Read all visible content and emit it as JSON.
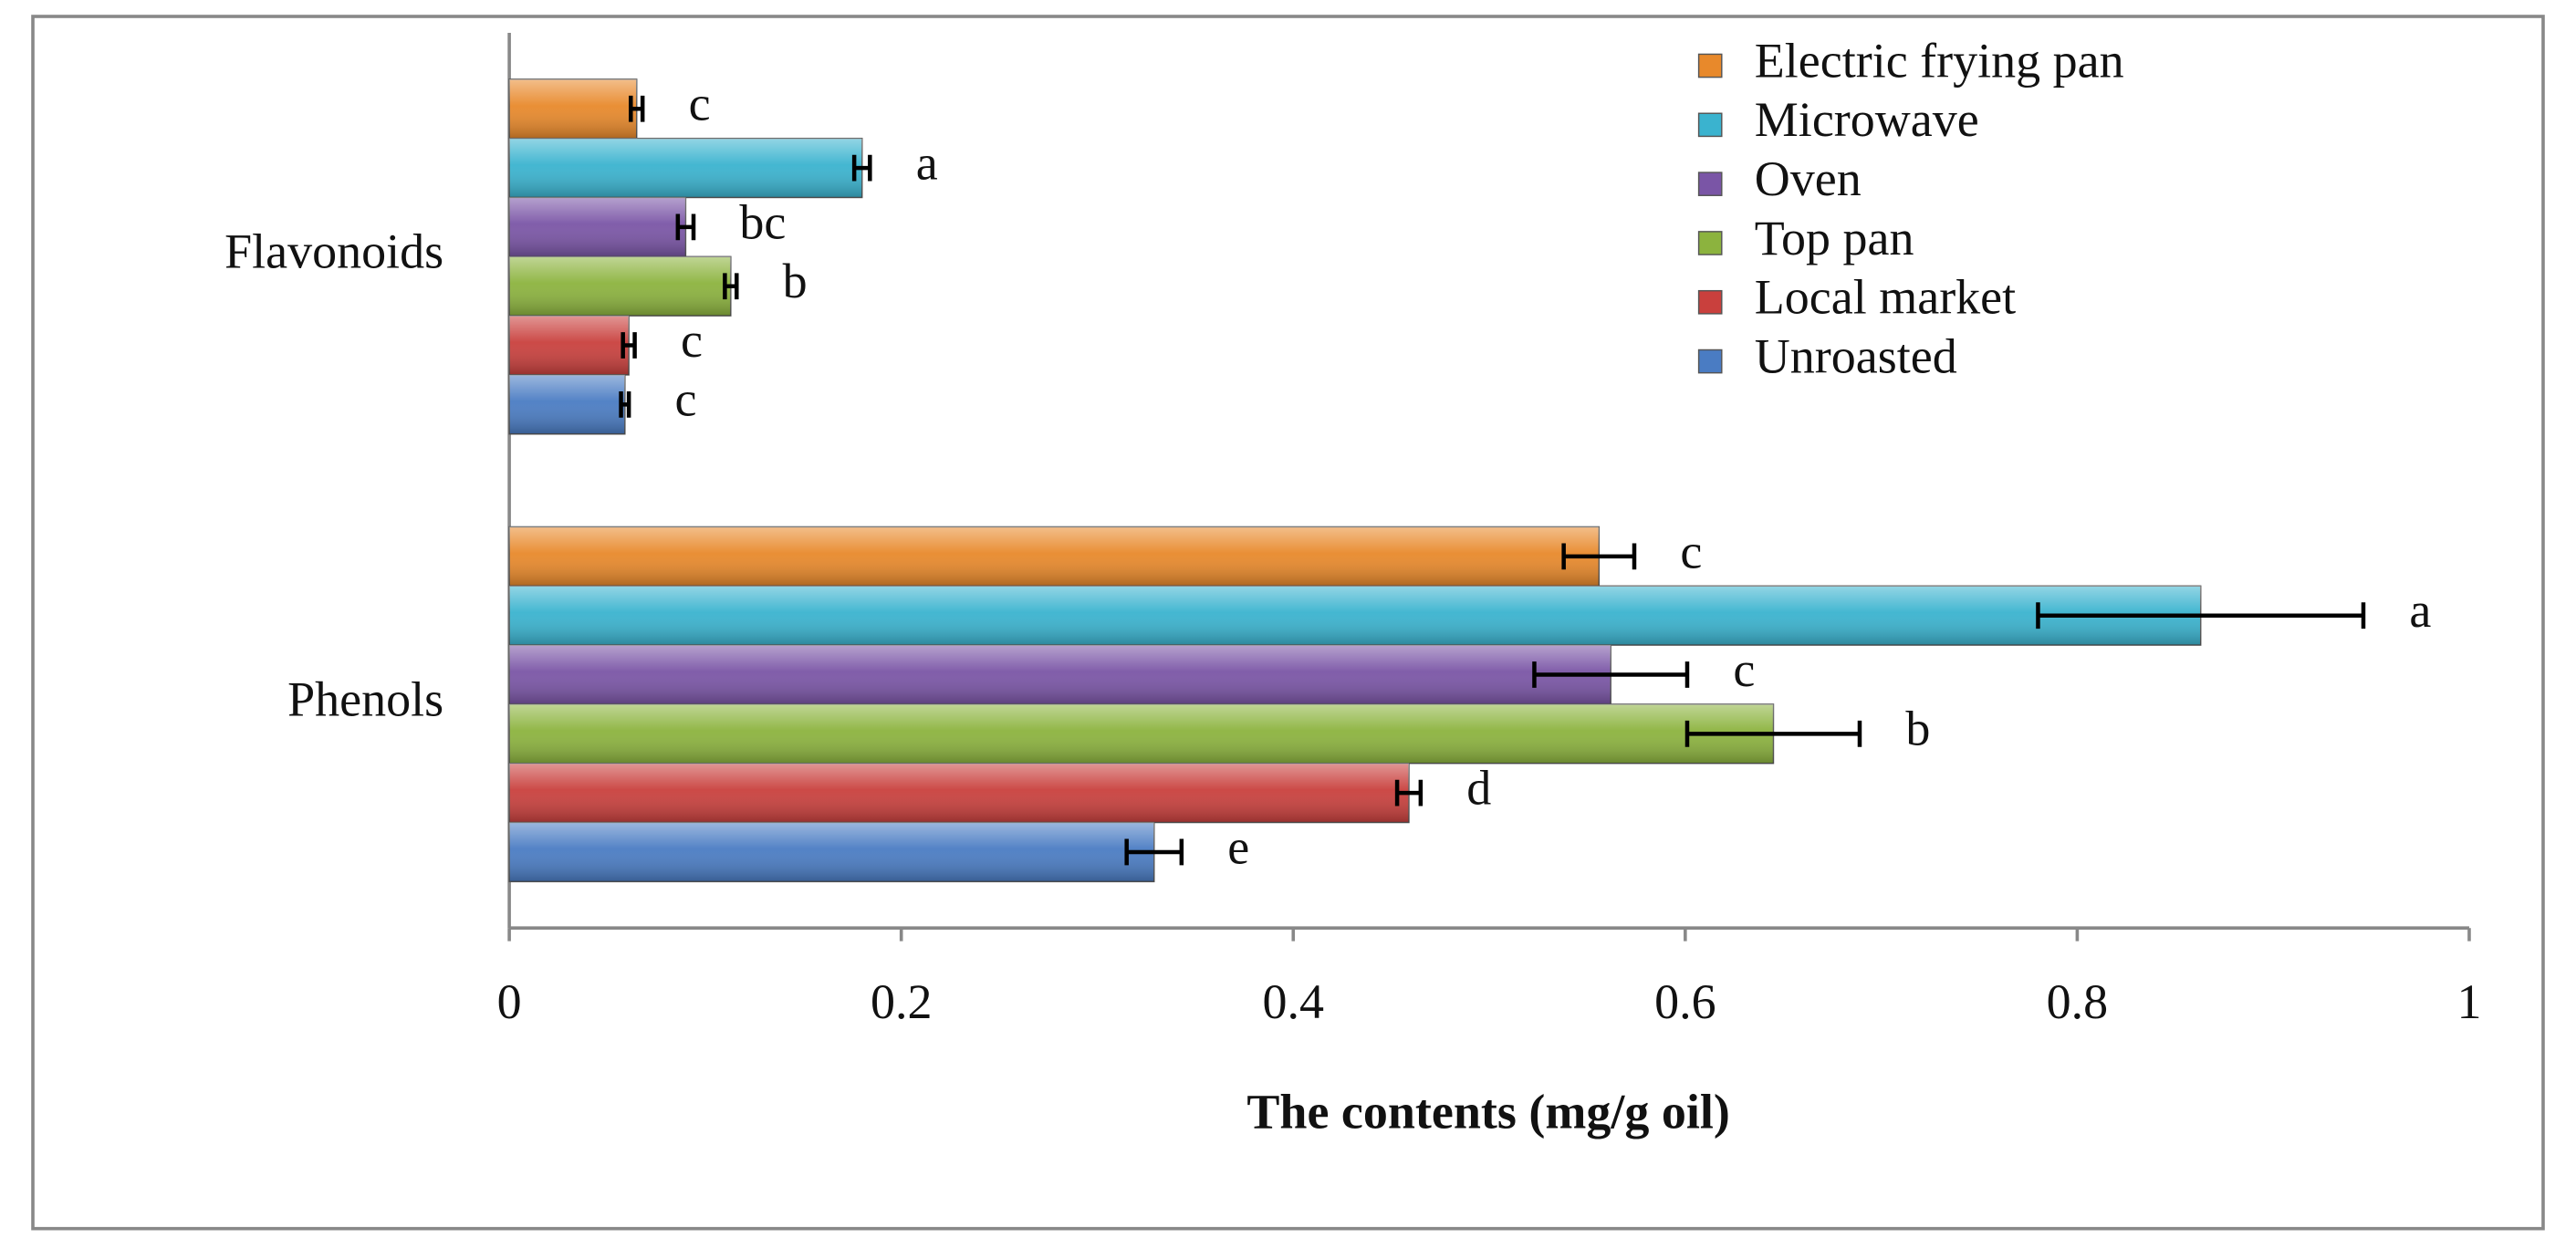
{
  "chart_data": {
    "type": "hbar",
    "xlabel": "The contents (mg/g oil)",
    "categories": [
      "Flavonoids",
      "Phenols"
    ],
    "series": [
      {
        "name": "Electric frying pan",
        "color": "#e8892b",
        "values": [
          0.065,
          0.556
        ],
        "errors": [
          0.003,
          0.018
        ],
        "labels": [
          "c",
          "c"
        ]
      },
      {
        "name": "Microwave",
        "color": "#3ab3cf",
        "values": [
          0.18,
          0.863
        ],
        "errors": [
          0.004,
          0.083
        ],
        "labels": [
          "a",
          "a"
        ]
      },
      {
        "name": "Oven",
        "color": "#7a55a6",
        "values": [
          0.09,
          0.562
        ],
        "errors": [
          0.004,
          0.039
        ],
        "labels": [
          "bc",
          "c"
        ]
      },
      {
        "name": "Top pan",
        "color": "#8cb33e",
        "values": [
          0.113,
          0.645
        ],
        "errors": [
          0.003,
          0.044
        ],
        "labels": [
          "b",
          "b"
        ]
      },
      {
        "name": "Local market",
        "color": "#c9403d",
        "values": [
          0.061,
          0.459
        ],
        "errors": [
          0.003,
          0.006
        ],
        "labels": [
          "c",
          "d"
        ]
      },
      {
        "name": "Unroasted",
        "color": "#4a7cc3",
        "values": [
          0.059,
          0.329
        ],
        "errors": [
          0.002,
          0.014
        ],
        "labels": [
          "c",
          "e"
        ]
      }
    ],
    "xlim": [
      0,
      1
    ],
    "xticks": [
      0,
      0.2,
      0.4,
      0.6,
      0.8,
      1
    ],
    "legend": "upper right"
  }
}
